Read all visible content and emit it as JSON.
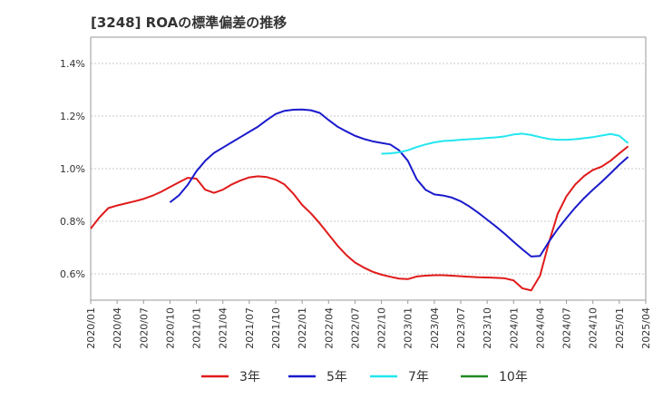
{
  "chart_data": {
    "type": "line",
    "title": "[3248]  ROAの標準偏差の推移",
    "xlabel": "",
    "ylabel": "",
    "x_range": [
      "2020-01",
      "2025-04"
    ],
    "ylim": [
      0.5,
      1.5
    ],
    "y_ticks": [
      0.6,
      0.8,
      1.0,
      1.2,
      1.4
    ],
    "y_tick_labels": [
      "0.6%",
      "0.8%",
      "1.0%",
      "1.2%",
      "1.4%"
    ],
    "x_tick_labels": [
      "2020/01",
      "2020/04",
      "2020/07",
      "2020/10",
      "2021/01",
      "2021/04",
      "2021/07",
      "2021/10",
      "2022/01",
      "2022/04",
      "2022/07",
      "2022/10",
      "2023/01",
      "2023/04",
      "2023/07",
      "2023/10",
      "2024/01",
      "2024/04",
      "2024/07",
      "2024/10",
      "2025/01",
      "2025/04"
    ],
    "grid": true,
    "legend_position": "bottom",
    "series": [
      {
        "name": "3年",
        "color": "#e01a1a",
        "points": [
          [
            "2020-01",
            0.772
          ],
          [
            "2020-02",
            0.815
          ],
          [
            "2020-03",
            0.85
          ],
          [
            "2020-04",
            0.86
          ],
          [
            "2020-05",
            0.868
          ],
          [
            "2020-06",
            0.876
          ],
          [
            "2020-07",
            0.885
          ],
          [
            "2020-08",
            0.897
          ],
          [
            "2020-09",
            0.912
          ],
          [
            "2020-10",
            0.93
          ],
          [
            "2020-11",
            0.948
          ],
          [
            "2020-12",
            0.965
          ],
          [
            "2021-01",
            0.962
          ],
          [
            "2021-02",
            0.92
          ],
          [
            "2021-03",
            0.908
          ],
          [
            "2021-04",
            0.92
          ],
          [
            "2021-05",
            0.94
          ],
          [
            "2021-06",
            0.955
          ],
          [
            "2021-07",
            0.967
          ],
          [
            "2021-08",
            0.971
          ],
          [
            "2021-09",
            0.968
          ],
          [
            "2021-10",
            0.958
          ],
          [
            "2021-11",
            0.94
          ],
          [
            "2021-12",
            0.905
          ],
          [
            "2022-01",
            0.862
          ],
          [
            "2022-02",
            0.83
          ],
          [
            "2022-03",
            0.792
          ],
          [
            "2022-04",
            0.75
          ],
          [
            "2022-05",
            0.708
          ],
          [
            "2022-06",
            0.672
          ],
          [
            "2022-07",
            0.643
          ],
          [
            "2022-08",
            0.624
          ],
          [
            "2022-09",
            0.608
          ],
          [
            "2022-10",
            0.597
          ],
          [
            "2022-11",
            0.589
          ],
          [
            "2022-12",
            0.582
          ],
          [
            "2023-01",
            0.58
          ],
          [
            "2023-02",
            0.59
          ],
          [
            "2023-03",
            0.593
          ],
          [
            "2023-04",
            0.595
          ],
          [
            "2023-05",
            0.595
          ],
          [
            "2023-06",
            0.593
          ],
          [
            "2023-07",
            0.591
          ],
          [
            "2023-08",
            0.589
          ],
          [
            "2023-09",
            0.587
          ],
          [
            "2023-10",
            0.586
          ],
          [
            "2023-11",
            0.585
          ],
          [
            "2023-12",
            0.583
          ],
          [
            "2024-01",
            0.575
          ],
          [
            "2024-02",
            0.545
          ],
          [
            "2024-03",
            0.537
          ],
          [
            "2024-04",
            0.593
          ],
          [
            "2024-05",
            0.718
          ],
          [
            "2024-06",
            0.828
          ],
          [
            "2024-07",
            0.895
          ],
          [
            "2024-08",
            0.94
          ],
          [
            "2024-09",
            0.972
          ],
          [
            "2024-10",
            0.995
          ],
          [
            "2024-11",
            1.008
          ],
          [
            "2024-12",
            1.03
          ],
          [
            "2025-01",
            1.058
          ],
          [
            "2025-02",
            1.085
          ]
        ]
      },
      {
        "name": "5年",
        "color": "#1a1acc",
        "points": [
          [
            "2020-10",
            0.872
          ],
          [
            "2020-11",
            0.898
          ],
          [
            "2020-12",
            0.938
          ],
          [
            "2021-01",
            0.99
          ],
          [
            "2021-02",
            1.03
          ],
          [
            "2021-03",
            1.06
          ],
          [
            "2021-04",
            1.08
          ],
          [
            "2021-05",
            1.1
          ],
          [
            "2021-06",
            1.12
          ],
          [
            "2021-07",
            1.14
          ],
          [
            "2021-08",
            1.16
          ],
          [
            "2021-09",
            1.185
          ],
          [
            "2021-10",
            1.208
          ],
          [
            "2021-11",
            1.22
          ],
          [
            "2021-12",
            1.224
          ],
          [
            "2022-01",
            1.225
          ],
          [
            "2022-02",
            1.222
          ],
          [
            "2022-03",
            1.212
          ],
          [
            "2022-04",
            1.185
          ],
          [
            "2022-05",
            1.16
          ],
          [
            "2022-06",
            1.142
          ],
          [
            "2022-07",
            1.125
          ],
          [
            "2022-08",
            1.113
          ],
          [
            "2022-09",
            1.104
          ],
          [
            "2022-10",
            1.098
          ],
          [
            "2022-11",
            1.092
          ],
          [
            "2022-12",
            1.07
          ],
          [
            "2023-01",
            1.03
          ],
          [
            "2023-02",
            0.96
          ],
          [
            "2023-03",
            0.92
          ],
          [
            "2023-04",
            0.902
          ],
          [
            "2023-05",
            0.898
          ],
          [
            "2023-06",
            0.89
          ],
          [
            "2023-07",
            0.876
          ],
          [
            "2023-08",
            0.856
          ],
          [
            "2023-09",
            0.832
          ],
          [
            "2023-10",
            0.806
          ],
          [
            "2023-11",
            0.78
          ],
          [
            "2023-12",
            0.752
          ],
          [
            "2024-01",
            0.722
          ],
          [
            "2024-02",
            0.693
          ],
          [
            "2024-03",
            0.666
          ],
          [
            "2024-04",
            0.668
          ],
          [
            "2024-05",
            0.722
          ],
          [
            "2024-06",
            0.77
          ],
          [
            "2024-07",
            0.812
          ],
          [
            "2024-08",
            0.852
          ],
          [
            "2024-09",
            0.888
          ],
          [
            "2024-10",
            0.92
          ],
          [
            "2024-11",
            0.95
          ],
          [
            "2024-12",
            0.982
          ],
          [
            "2025-01",
            1.015
          ],
          [
            "2025-02",
            1.045
          ]
        ]
      },
      {
        "name": "7年",
        "color": "#22e6f0",
        "points": [
          [
            "2022-10",
            1.057
          ],
          [
            "2022-11",
            1.058
          ],
          [
            "2022-12",
            1.062
          ],
          [
            "2023-01",
            1.07
          ],
          [
            "2023-02",
            1.082
          ],
          [
            "2023-03",
            1.092
          ],
          [
            "2023-04",
            1.1
          ],
          [
            "2023-05",
            1.105
          ],
          [
            "2023-06",
            1.107
          ],
          [
            "2023-07",
            1.11
          ],
          [
            "2023-08",
            1.112
          ],
          [
            "2023-09",
            1.114
          ],
          [
            "2023-10",
            1.117
          ],
          [
            "2023-11",
            1.119
          ],
          [
            "2023-12",
            1.123
          ],
          [
            "2024-01",
            1.13
          ],
          [
            "2024-02",
            1.133
          ],
          [
            "2024-03",
            1.128
          ],
          [
            "2024-04",
            1.12
          ],
          [
            "2024-05",
            1.113
          ],
          [
            "2024-06",
            1.11
          ],
          [
            "2024-07",
            1.11
          ],
          [
            "2024-08",
            1.112
          ],
          [
            "2024-09",
            1.116
          ],
          [
            "2024-10",
            1.12
          ],
          [
            "2024-11",
            1.126
          ],
          [
            "2024-12",
            1.132
          ],
          [
            "2025-01",
            1.125
          ],
          [
            "2025-02",
            1.097
          ]
        ]
      },
      {
        "name": "10年",
        "color": "#228b22",
        "points": []
      }
    ]
  }
}
